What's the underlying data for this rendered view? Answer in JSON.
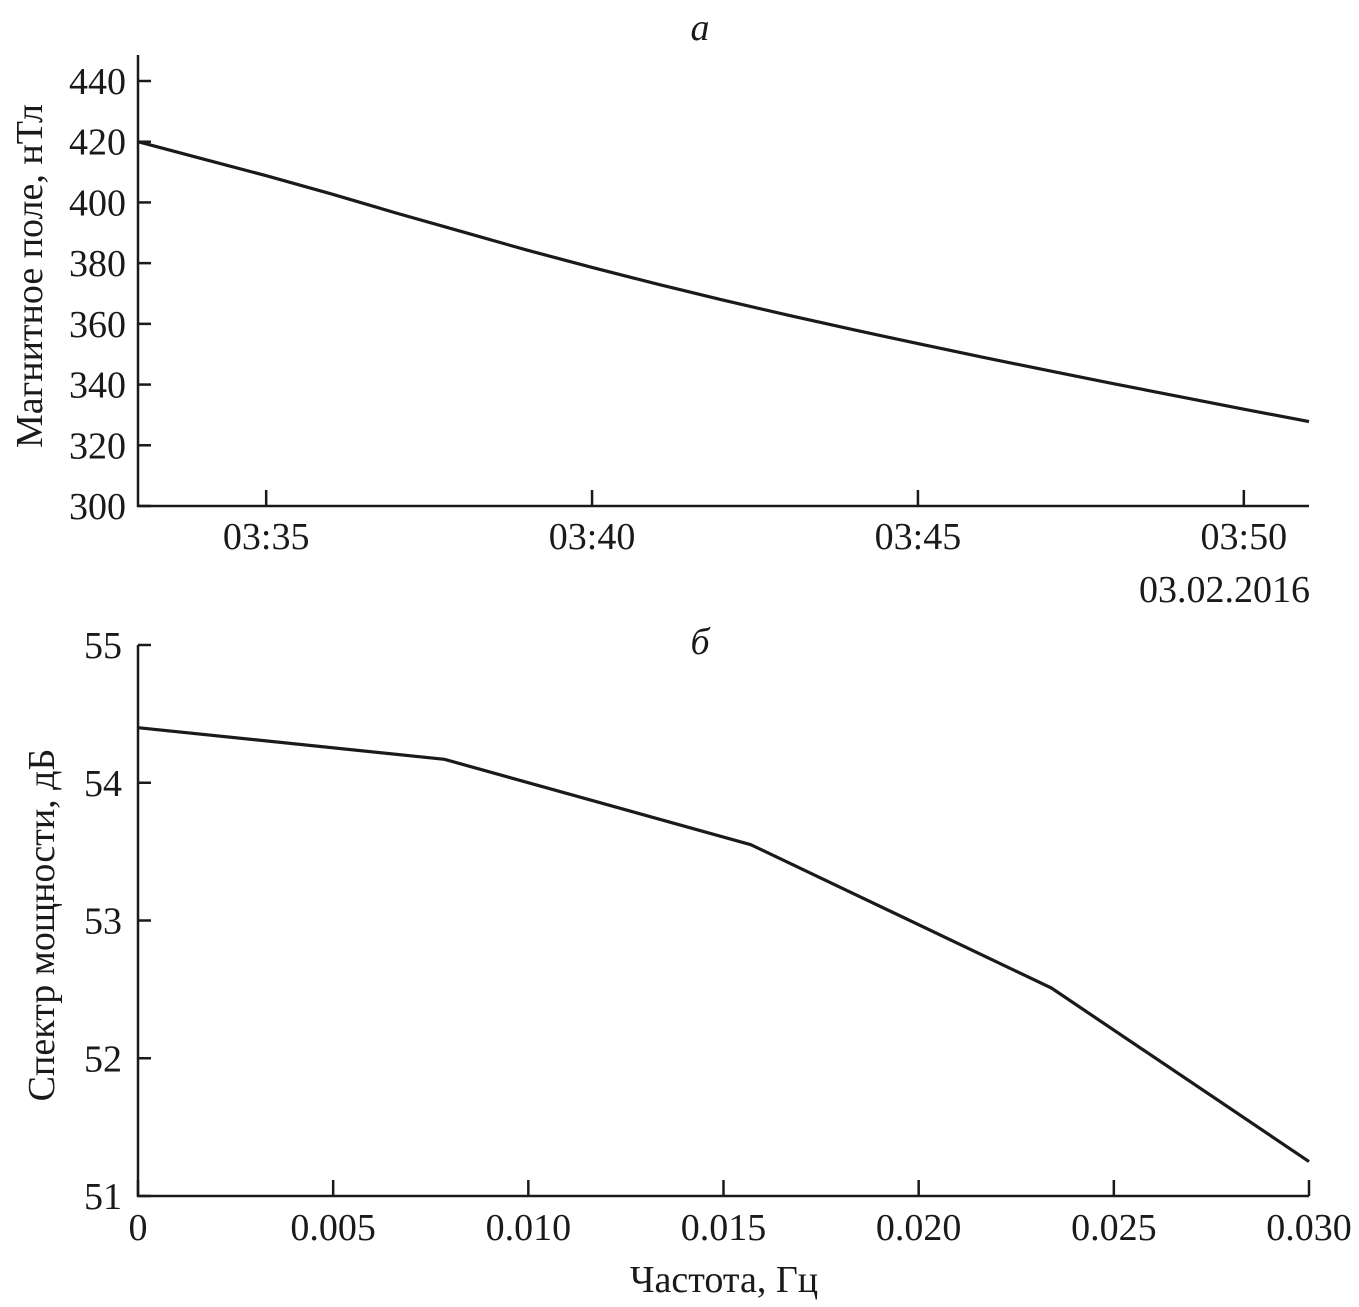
{
  "chart_data": [
    {
      "type": "line",
      "panel_label": "а",
      "title": "",
      "xlabel": "",
      "date_label": "03.02.2016",
      "ylabel": "Магнитное поле, нТл",
      "ylim": [
        300,
        450
      ],
      "yticks": [
        "300",
        "320",
        "340",
        "360",
        "380",
        "400",
        "420",
        "440"
      ],
      "xlim": [
        "03:33:02",
        "03:51:00"
      ],
      "xticks": [
        "03:35",
        "03:40",
        "03:45",
        "03:50"
      ],
      "grid": false,
      "series": [
        {
          "x": [
            "03:33:02",
            "03:34:00",
            "03:35:00",
            "03:36:00",
            "03:37:00",
            "03:38:00",
            "03:39:00",
            "03:40:00",
            "03:41:00",
            "03:42:00",
            "03:43:00",
            "03:44:00",
            "03:45:00",
            "03:46:00",
            "03:47:00",
            "03:48:00",
            "03:49:00",
            "03:50:00",
            "03:51:00"
          ],
          "y": [
            420,
            414.5,
            408.8,
            402.8,
            396.5,
            390.4,
            384.3,
            378.6,
            373.1,
            367.9,
            362.9,
            358.1,
            353.5,
            349.0,
            344.6,
            340.3,
            336.1,
            331.9,
            327.8
          ]
        }
      ]
    },
    {
      "type": "line",
      "panel_label": "б",
      "title": "",
      "xlabel": "Частота, Гц",
      "ylabel": "Спектр мощности, дБ",
      "xlim": [
        0,
        0.03
      ],
      "ylim": [
        51,
        55
      ],
      "xticks": [
        "0",
        "0.005",
        "0.010",
        "0.015",
        "0.020",
        "0.025",
        "0.030"
      ],
      "yticks": [
        "51",
        "52",
        "53",
        "54",
        "55"
      ],
      "grid": false,
      "series": [
        {
          "x": [
            0,
            0.00785,
            0.0157,
            0.0234,
            0.03
          ],
          "y": [
            54.4,
            54.17,
            53.55,
            52.51,
            51.25
          ]
        }
      ]
    }
  ]
}
